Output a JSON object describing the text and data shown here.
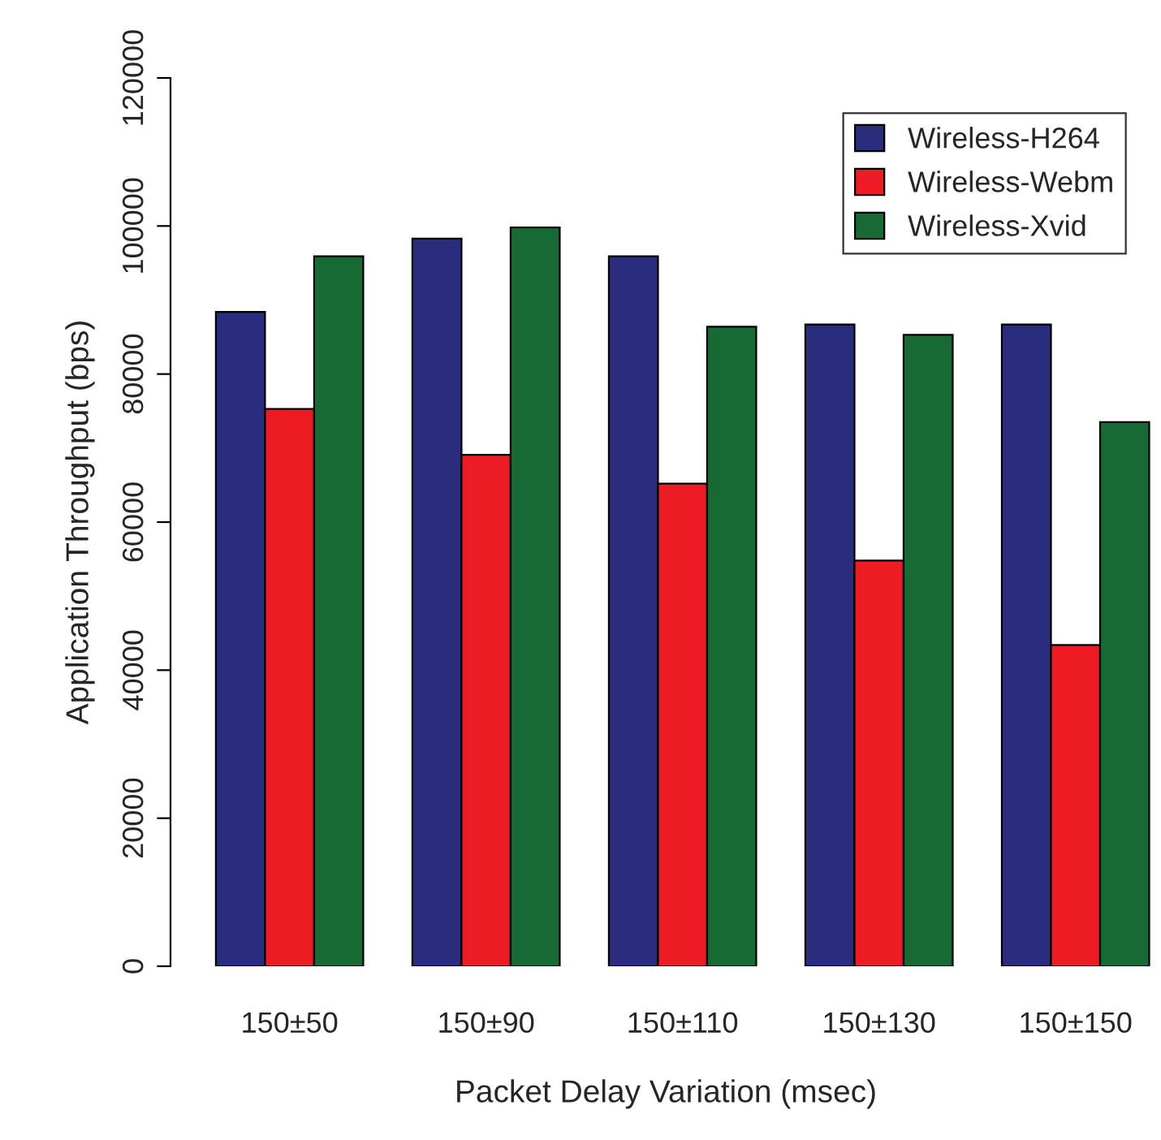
{
  "chart_data": {
    "type": "bar",
    "xlabel": "Packet Delay Variation (msec)",
    "ylabel": "Application Throughput (bps)",
    "categories": [
      "150±50",
      "150±90",
      "150±110",
      "150±130",
      "150±150"
    ],
    "series": [
      {
        "name": "Wireless-H264",
        "color": "#2a2c7e",
        "values": [
          88400,
          98300,
          95900,
          86700,
          86700
        ]
      },
      {
        "name": "Wireless-Webm",
        "color": "#ed1c24",
        "values": [
          75300,
          69100,
          65200,
          54800,
          43400
        ]
      },
      {
        "name": "Wireless-Xvid",
        "color": "#186a34",
        "values": [
          95900,
          99800,
          86400,
          85300,
          73500
        ]
      }
    ],
    "ylim": [
      0,
      120000
    ],
    "yticks": [
      0,
      20000,
      40000,
      60000,
      80000,
      100000,
      120000
    ],
    "grid": false,
    "legend": "top right"
  }
}
